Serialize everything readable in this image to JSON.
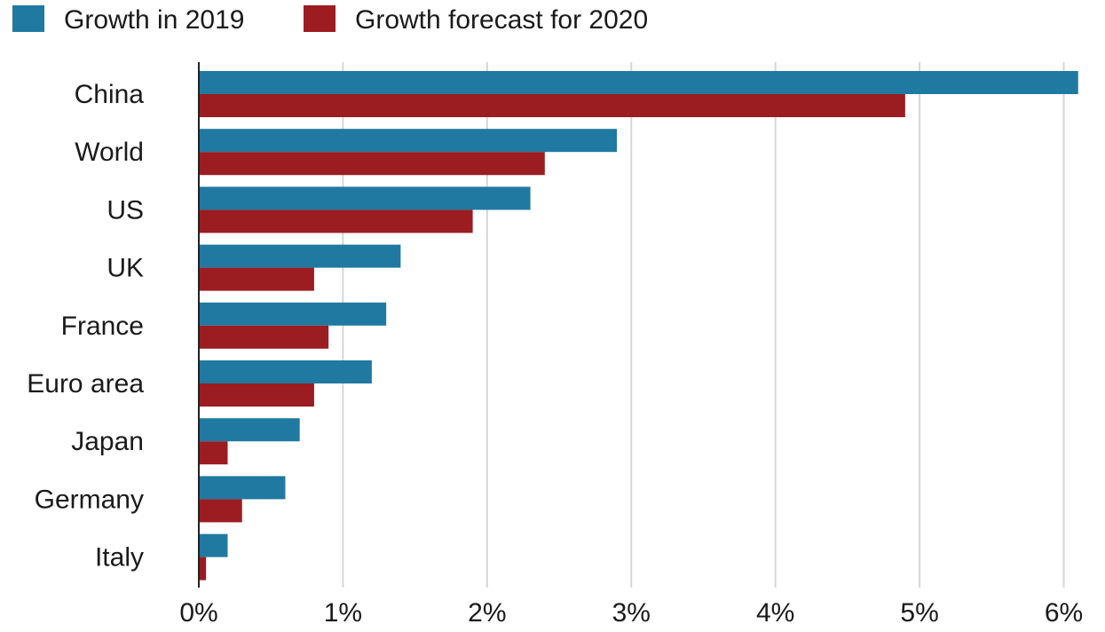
{
  "chart_data": {
    "type": "bar",
    "orientation": "horizontal",
    "title": "",
    "xlabel": "",
    "ylabel": "",
    "categories": [
      "China",
      "World",
      "US",
      "UK",
      "France",
      "Euro area",
      "Japan",
      "Germany",
      "Italy"
    ],
    "series": [
      {
        "name": "Growth in 2019",
        "color": "#2079a0",
        "values": [
          6.1,
          2.9,
          2.3,
          1.4,
          1.3,
          1.2,
          0.7,
          0.6,
          0.2
        ]
      },
      {
        "name": "Growth forecast for 2020",
        "color": "#9b1c21",
        "values": [
          4.9,
          2.4,
          1.9,
          0.8,
          0.9,
          0.8,
          0.2,
          0.3,
          0.05
        ]
      }
    ],
    "xlim": [
      0,
      6.2
    ],
    "xticks": [
      0,
      1,
      2,
      3,
      4,
      5,
      6
    ],
    "xtick_labels": [
      "0%",
      "1%",
      "2%",
      "3%",
      "4%",
      "5%",
      "6%"
    ],
    "grid": "vertical",
    "legend_position": "top-left"
  }
}
